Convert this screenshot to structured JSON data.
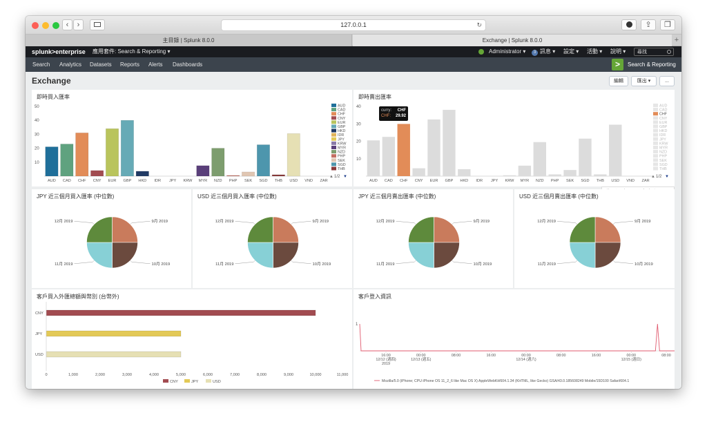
{
  "browser": {
    "url": "127.0.0.1",
    "tabs": [
      "主目錄 | Splunk 8.0.0",
      "Exchange | Splunk 8.0.0"
    ],
    "new_tab": "+"
  },
  "splunk": {
    "logo_text": "splunk>enterprise",
    "app_menu": "應用套件: Search & Reporting ▾",
    "user_menu": "Administrator ▾",
    "messages_count": "3",
    "messages_menu": "訊息 ▾",
    "settings_menu": "設定 ▾",
    "activity_menu": "活動 ▾",
    "help_menu": "說明 ▾",
    "search_placeholder": "尋找",
    "nav": [
      "Search",
      "Analytics",
      "Datasets",
      "Reports",
      "Alerts",
      "Dashboards"
    ],
    "app_name": "Search & Reporting"
  },
  "dashboard": {
    "title": "Exchange",
    "edit_label": "編輯",
    "export_label": "匯出 ▾",
    "more_label": "..."
  },
  "colors": {
    "AUD": "#1f6f9a",
    "CAD": "#5fa27f",
    "CHF": "#e28c58",
    "CNY": "#a24c51",
    "EUR": "#b9c45c",
    "GBP": "#66aab6",
    "HKD": "#213a64",
    "IDR": "#e0b35a",
    "JPY": "#e3c957",
    "KRW": "#8a7aa8",
    "MYR": "#5a3f7a",
    "NZD": "#7d9d6e",
    "PHP": "#c46e62",
    "SEK": "#e0c6b2",
    "SGD": "#4d96ad",
    "THB": "#8a3a3a",
    "USD": "#e6e0b4",
    "VND": "#7c8c7c",
    "ZAR": "#556b5a"
  },
  "panels": {
    "buy_rate": {
      "title": "即時買入匯率",
      "legend_page": "1/2",
      "chart_data": {
        "type": "bar",
        "categories": [
          "AUD",
          "CAD",
          "CHF",
          "CNY",
          "EUR",
          "GBP",
          "HKD",
          "IDR",
          "JPY",
          "KRW",
          "MYR",
          "NZD",
          "PHP",
          "SEK",
          "SGD",
          "THB",
          "USD",
          "VND",
          "ZAR"
        ],
        "values": [
          21,
          23,
          31,
          4,
          34,
          40,
          3.5,
          0,
          0,
          0,
          7.5,
          20,
          0.5,
          3,
          22.5,
          1,
          30.5,
          0,
          0
        ],
        "legend": [
          "AUD",
          "CAD",
          "CHF",
          "CNY",
          "EUR",
          "GBP",
          "HKD",
          "IDR",
          "JPY",
          "KRW",
          "MYR",
          "NZD",
          "PHP",
          "SEK",
          "SGD",
          "THB"
        ],
        "yticks": [
          10,
          20,
          30,
          40,
          50
        ],
        "ylim": [
          0,
          50
        ]
      }
    },
    "sell_rate": {
      "title": "即時賣出匯率",
      "legend_page": "1/2",
      "tooltip": {
        "key_label": "curry:",
        "key_value": "CHF",
        "val_label": "CHF:",
        "val_value": "29.92"
      },
      "toolbar_time": "4 minutes ago",
      "chart_data": {
        "type": "bar",
        "categories": [
          "AUD",
          "CAD",
          "CHF",
          "CNY",
          "EUR",
          "GBP",
          "HKD",
          "IDR",
          "JPY",
          "KRW",
          "MYR",
          "NZD",
          "PHP",
          "SEK",
          "SGD",
          "THB",
          "USD",
          "VND",
          "ZAR"
        ],
        "values": [
          20.5,
          22.5,
          29.92,
          4.5,
          32.5,
          38,
          4,
          0,
          0,
          0.5,
          6,
          19.5,
          1,
          3.5,
          21.5,
          1,
          29.5,
          0,
          0
        ],
        "highlight": "CHF",
        "legend": [
          "AUD",
          "CAD",
          "CHF",
          "CNY",
          "EUR",
          "GBP",
          "HKD",
          "IDR",
          "JPY",
          "KRW",
          "MYR",
          "NZD",
          "PHP",
          "SEK",
          "SGD",
          "THB"
        ],
        "yticks": [
          10,
          20,
          30,
          40
        ],
        "ylim": [
          0,
          40
        ]
      }
    },
    "pies": [
      {
        "title": "JPY 近三個月買入匯率 (中位數)",
        "chart_data": {
          "type": "pie",
          "labels": [
            "9月 2019",
            "10月 2019",
            "11月 2019",
            "12月 2019"
          ],
          "values": [
            25,
            25,
            25,
            25
          ]
        }
      },
      {
        "title": "USD 近三個月買入匯率 (中位數)",
        "chart_data": {
          "type": "pie",
          "labels": [
            "9月 2019",
            "10月 2019",
            "11月 2019",
            "12月 2019"
          ],
          "values": [
            25,
            25,
            25,
            25
          ]
        }
      },
      {
        "title": "JPY 近三個月賣出匯率 (中位數)",
        "chart_data": {
          "type": "pie",
          "labels": [
            "9月 2019",
            "10月 2019",
            "11月 2019",
            "12月 2019"
          ],
          "values": [
            25,
            25,
            25,
            25
          ]
        }
      },
      {
        "title": "USD 近三個月賣出匯率 (中位數)",
        "chart_data": {
          "type": "pie",
          "labels": [
            "9月 2019",
            "10月 2019",
            "11月 2019",
            "12月 2019"
          ],
          "values": [
            25,
            25,
            25,
            25
          ]
        }
      }
    ],
    "pie_colors": [
      "#c97b5c",
      "#6b4a3e",
      "#87d0d6",
      "#5e8a3c"
    ],
    "customer_total": {
      "title": "客戶買入外匯總額與幣別 (台幣外)",
      "chart_data": {
        "type": "bar",
        "orientation": "horizontal",
        "categories": [
          "CNY",
          "JPY",
          "USD"
        ],
        "values": [
          10000,
          5000,
          5000
        ],
        "colors": [
          "#a24c51",
          "#e3c957",
          "#e6e0b4"
        ],
        "xticks": [
          "0",
          "1,000",
          "2,000",
          "3,000",
          "4,000",
          "5,000",
          "6,000",
          "7,000",
          "8,000",
          "9,000",
          "10,000",
          "11,000"
        ],
        "xlim": [
          0,
          11000
        ],
        "legend": [
          "CNY",
          "JPY",
          "USD"
        ]
      }
    },
    "login_info": {
      "title": "客戶登入資訊",
      "chart_data": {
        "type": "line",
        "y_tick": "1",
        "x_ticks": [
          [
            "16:00",
            "12/12 (週四)",
            "2019"
          ],
          [
            "00:00",
            "12/13 (週五)",
            ""
          ],
          [
            "08:00",
            "",
            ""
          ],
          [
            "16:00",
            "",
            ""
          ],
          [
            "00:00",
            "12/14 (週六)",
            ""
          ],
          [
            "08:00",
            "",
            ""
          ],
          [
            "16:00",
            "",
            ""
          ],
          [
            "00:00",
            "12/15 (週日)",
            ""
          ],
          [
            "08:00",
            "",
            ""
          ]
        ],
        "series": [
          {
            "name": "Mozilla/5.0 (iPhone; CPU iPhone OS 11_2_6 like Mac OS X) AppleWebKit/604.1.34 (KHTML, like Gecko) GSA/43.0.185608249 Mobile/15D100 Safari/604.1",
            "spikes_x_index": [
              0,
              7.75,
              8.95
            ]
          }
        ]
      }
    }
  }
}
